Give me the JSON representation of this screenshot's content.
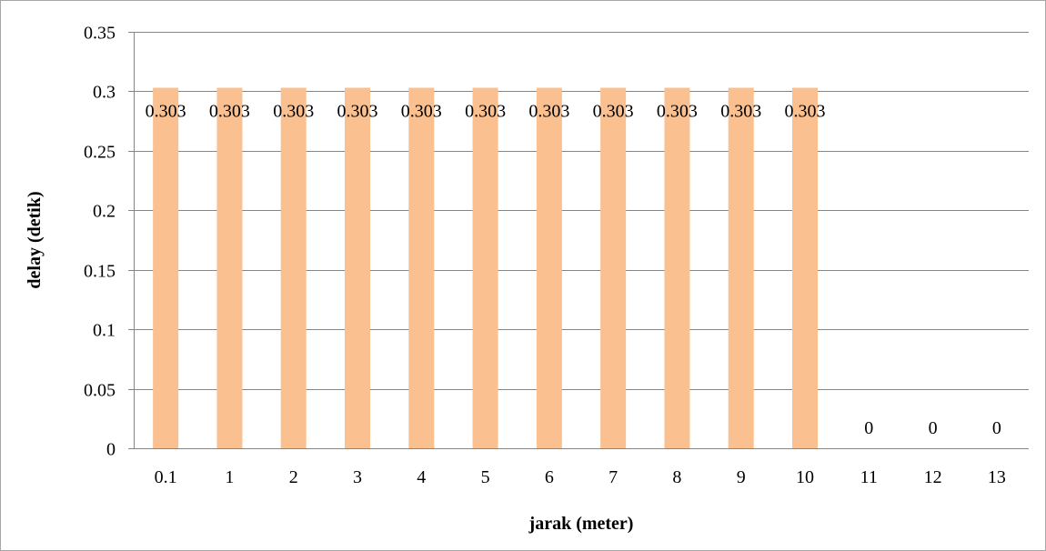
{
  "chart_data": {
    "type": "bar",
    "categories": [
      "0.1",
      "1",
      "2",
      "3",
      "4",
      "5",
      "6",
      "7",
      "8",
      "9",
      "10",
      "11",
      "12",
      "13"
    ],
    "values": [
      0.303,
      0.303,
      0.303,
      0.303,
      0.303,
      0.303,
      0.303,
      0.303,
      0.303,
      0.303,
      0.303,
      0,
      0,
      0
    ],
    "data_labels": [
      "0.303",
      "0.303",
      "0.303",
      "0.303",
      "0.303",
      "0.303",
      "0.303",
      "0.303",
      "0.303",
      "0.303",
      "0.303",
      "0",
      "0",
      "0"
    ],
    "xlabel": "jarak (meter)",
    "ylabel": "delay (detik)",
    "ylim": [
      0,
      0.35
    ],
    "yticks": [
      0,
      0.05,
      0.1,
      0.15,
      0.2,
      0.25,
      0.3,
      0.35
    ],
    "ytick_labels": [
      "0",
      "0.05",
      "0.1",
      "0.15",
      "0.2",
      "0.25",
      "0.3",
      "0.35"
    ],
    "grid": true,
    "legend": "none",
    "colors": {
      "bar": "#fac090",
      "grid": "#868686",
      "frame": "#a6a6a6"
    }
  }
}
